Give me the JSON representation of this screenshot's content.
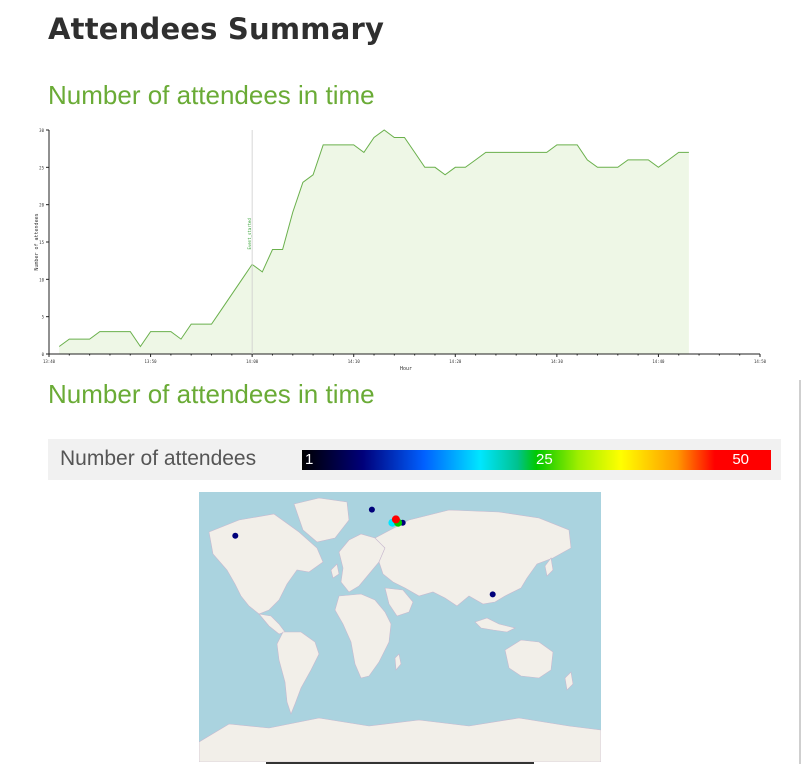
{
  "page": {
    "title": "Attendees Summary"
  },
  "sections": [
    {
      "title": "Number of attendees in time"
    },
    {
      "title": "Number of attendees in time"
    }
  ],
  "chart_data": {
    "type": "area",
    "xlabel": "Hour",
    "ylabel": "Number of attendees",
    "x_tick_labels": [
      "13:40",
      "13:50",
      "14:00",
      "14:10",
      "14:20",
      "14:30",
      "14:40",
      "14:50"
    ],
    "y_ticks": [
      0,
      5,
      10,
      15,
      20,
      25,
      30
    ],
    "ylim": [
      0,
      30
    ],
    "x_minutes": [
      1,
      2,
      3,
      4,
      5,
      6,
      7,
      8,
      9,
      10,
      11,
      12,
      13,
      14,
      15,
      16,
      17,
      18,
      19,
      20,
      21,
      22,
      23,
      24,
      25,
      26,
      27,
      28,
      29,
      30,
      31,
      32,
      33,
      34,
      35,
      36,
      37,
      38,
      39,
      40,
      41,
      42,
      43,
      44,
      45,
      46,
      47,
      48,
      49,
      50,
      51,
      52,
      53,
      54,
      55,
      56,
      57,
      58,
      59,
      60,
      61,
      62,
      63
    ],
    "values": [
      1,
      2,
      2,
      2,
      3,
      3,
      3,
      3,
      1,
      3,
      3,
      3,
      2,
      4,
      4,
      4,
      6,
      8,
      10,
      12,
      11,
      14,
      14,
      19,
      23,
      24,
      28,
      28,
      28,
      28,
      27,
      29,
      30,
      29,
      29,
      27,
      25,
      25,
      24,
      25,
      25,
      26,
      27,
      27,
      27,
      27,
      27,
      27,
      27,
      28,
      28,
      28,
      26,
      25,
      25,
      25,
      26,
      26,
      26,
      25,
      26,
      27,
      27
    ],
    "annotations": [
      {
        "x_minute": 20,
        "label": "Event_started"
      }
    ],
    "fill_color": "#eef7e6",
    "line_color": "#6ab04c",
    "grid": false,
    "legend": "none"
  },
  "legend": {
    "label": "Number of attendees",
    "min": "1",
    "mid": "25",
    "max": "50"
  },
  "map": {
    "type": "world map",
    "markers": [
      {
        "place": "west coast USA",
        "lon": -122,
        "lat": 37,
        "count": 1
      },
      {
        "place": "UK",
        "lon": -2,
        "lat": 53,
        "count": 1
      },
      {
        "place": "Hungary",
        "lon": 19,
        "lat": 47,
        "count": 50
      },
      {
        "place": "Serbia",
        "lon": 21,
        "lat": 45,
        "count": 30
      },
      {
        "place": "Croatia",
        "lon": 16,
        "lat": 45,
        "count": 20
      },
      {
        "place": "Romania",
        "lon": 25,
        "lat": 45,
        "count": 5
      },
      {
        "place": "Singapore",
        "lon": 104,
        "lat": 1,
        "count": 1
      }
    ]
  }
}
